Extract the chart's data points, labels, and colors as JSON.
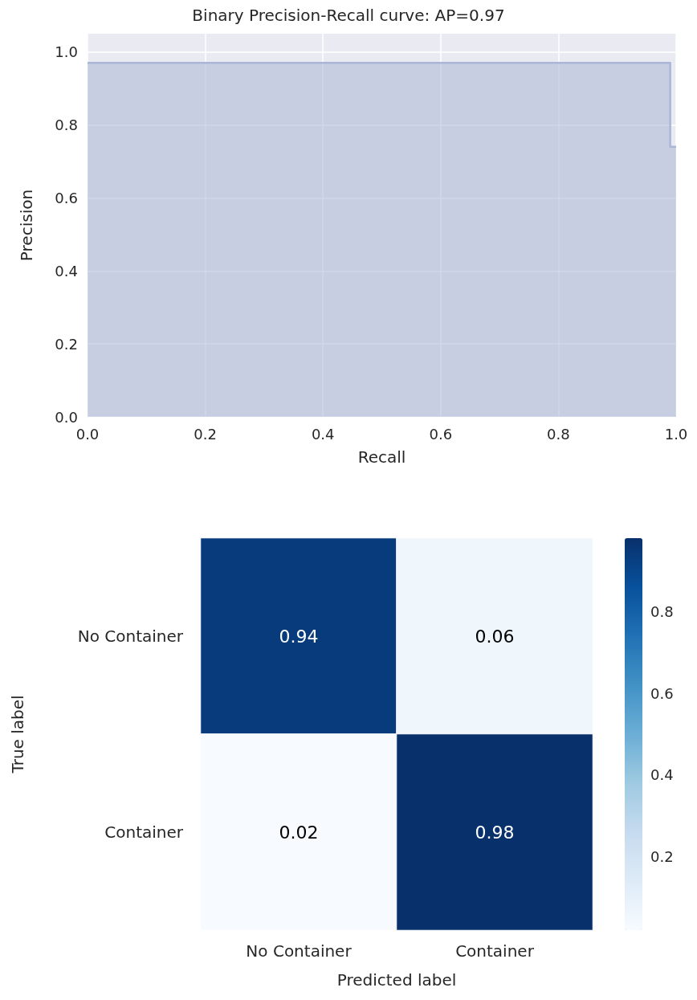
{
  "chart_data": [
    {
      "type": "step",
      "title": "Binary Precision-Recall curve: AP=0.97",
      "xlabel": "Recall",
      "ylabel": "Precision",
      "x": [
        0,
        0.99,
        1.0
      ],
      "series": [
        {
          "color": "#a9b6d6",
          "values": [
            0.97,
            0.74,
            0.74
          ]
        }
      ],
      "xlim": [
        0,
        1
      ],
      "xticks": [
        {
          "value": 0,
          "label": "0.0"
        },
        0.2,
        0.4,
        0.6,
        0.8,
        {
          "value": 1,
          "label": "1.0"
        }
      ],
      "ylim": [
        0,
        1.05
      ],
      "yticks": [
        {
          "value": 0,
          "label": "0.0"
        },
        0.2,
        0.4,
        0.6,
        0.8,
        {
          "value": 1,
          "label": "1.0"
        }
      ],
      "grid": true
    },
    {
      "type": "heatmap",
      "xlabel": "Predicted label",
      "ylabel": "True label",
      "categories": [
        "No Container",
        "Container"
      ],
      "y_categories": [
        "No Container",
        "Container"
      ],
      "cells": [
        [
          0.94,
          0.06
        ],
        [
          0.02,
          0.98
        ]
      ],
      "data_labels": true,
      "clim": [
        0.02,
        0.98
      ],
      "cticks": [
        0.2,
        0.4,
        0.6,
        0.8
      ]
    }
  ]
}
